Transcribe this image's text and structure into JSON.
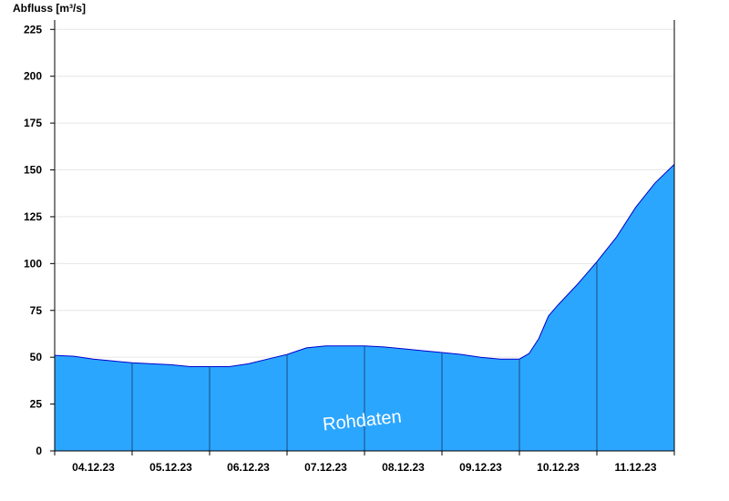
{
  "chart_data": {
    "type": "area",
    "ylabel": "Abfluss [m³/s]",
    "ylim": [
      0,
      230
    ],
    "yticks": [
      0,
      25,
      50,
      75,
      100,
      125,
      150,
      175,
      200,
      225
    ],
    "xlabels": [
      "04.12.23",
      "05.12.23",
      "06.12.23",
      "07.12.23",
      "08.12.23",
      "09.12.23",
      "10.12.23",
      "11.12.23"
    ],
    "x_start": "04.12.23 00:00",
    "x_end": "11.12.23 24:00",
    "grid": true,
    "watermark": "Rohdaten",
    "colors": {
      "fill": "#2ba6ff",
      "stroke": "#0000cc",
      "grid": "#e6e6e6",
      "divider": "#1a4a80"
    },
    "series": [
      {
        "x": [
          "04.12.23 00:00",
          "04.12.23 06:00",
          "04.12.23 12:00",
          "04.12.23 18:00",
          "05.12.23 00:00",
          "05.12.23 06:00",
          "05.12.23 12:00",
          "05.12.23 18:00",
          "06.12.23 00:00",
          "06.12.23 06:00",
          "06.12.23 12:00",
          "06.12.23 18:00",
          "07.12.23 00:00",
          "07.12.23 06:00",
          "07.12.23 12:00",
          "07.12.23 18:00",
          "08.12.23 00:00",
          "08.12.23 06:00",
          "08.12.23 12:00",
          "08.12.23 18:00",
          "09.12.23 00:00",
          "09.12.23 06:00",
          "09.12.23 12:00",
          "09.12.23 18:00",
          "10.12.23 00:00",
          "10.12.23 03:00",
          "10.12.23 06:00",
          "10.12.23 09:00",
          "10.12.23 12:00",
          "10.12.23 18:00",
          "11.12.23 00:00",
          "11.12.23 06:00",
          "11.12.23 12:00",
          "11.12.23 18:00",
          "11.12.23 24:00"
        ],
        "values": [
          51,
          50.5,
          49,
          48,
          47,
          46.5,
          46,
          45,
          45,
          45,
          46.5,
          49,
          51.5,
          55,
          56,
          56,
          56,
          55.5,
          54.5,
          53.5,
          52.5,
          51.5,
          50,
          49,
          49,
          52,
          60,
          72,
          78,
          89,
          101,
          114,
          130,
          143,
          153
        ]
      }
    ]
  }
}
